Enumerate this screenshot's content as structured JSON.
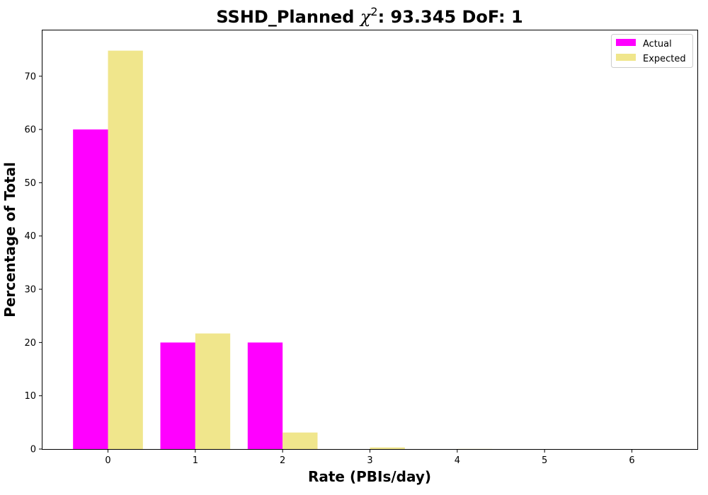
{
  "chart_data": {
    "type": "bar",
    "title_parts": {
      "prefix": "SSHD_Planned ",
      "symbol": "χ",
      "superscript": "2",
      "suffix": ": 93.345 DoF: 1"
    },
    "xlabel": "Rate (PBIs/day)",
    "ylabel": "Percentage of Total",
    "categories": [
      "0",
      "1",
      "2",
      "3",
      "4",
      "5",
      "6"
    ],
    "series": [
      {
        "name": "Actual",
        "color": "#ff00ff",
        "values": [
          60.0,
          20.0,
          20.0,
          0,
          0,
          0,
          0
        ]
      },
      {
        "name": "Expected",
        "color": "#f0e68c",
        "values": [
          74.8,
          21.7,
          3.1,
          0.3,
          0.02,
          0.0,
          0.0
        ]
      }
    ],
    "xlim": [
      -0.75,
      6.75
    ],
    "ylim": [
      0,
      78.6
    ],
    "yticks": [
      0,
      10,
      20,
      30,
      40,
      50,
      60,
      70
    ],
    "grid": false,
    "legend_position": "top-right"
  }
}
